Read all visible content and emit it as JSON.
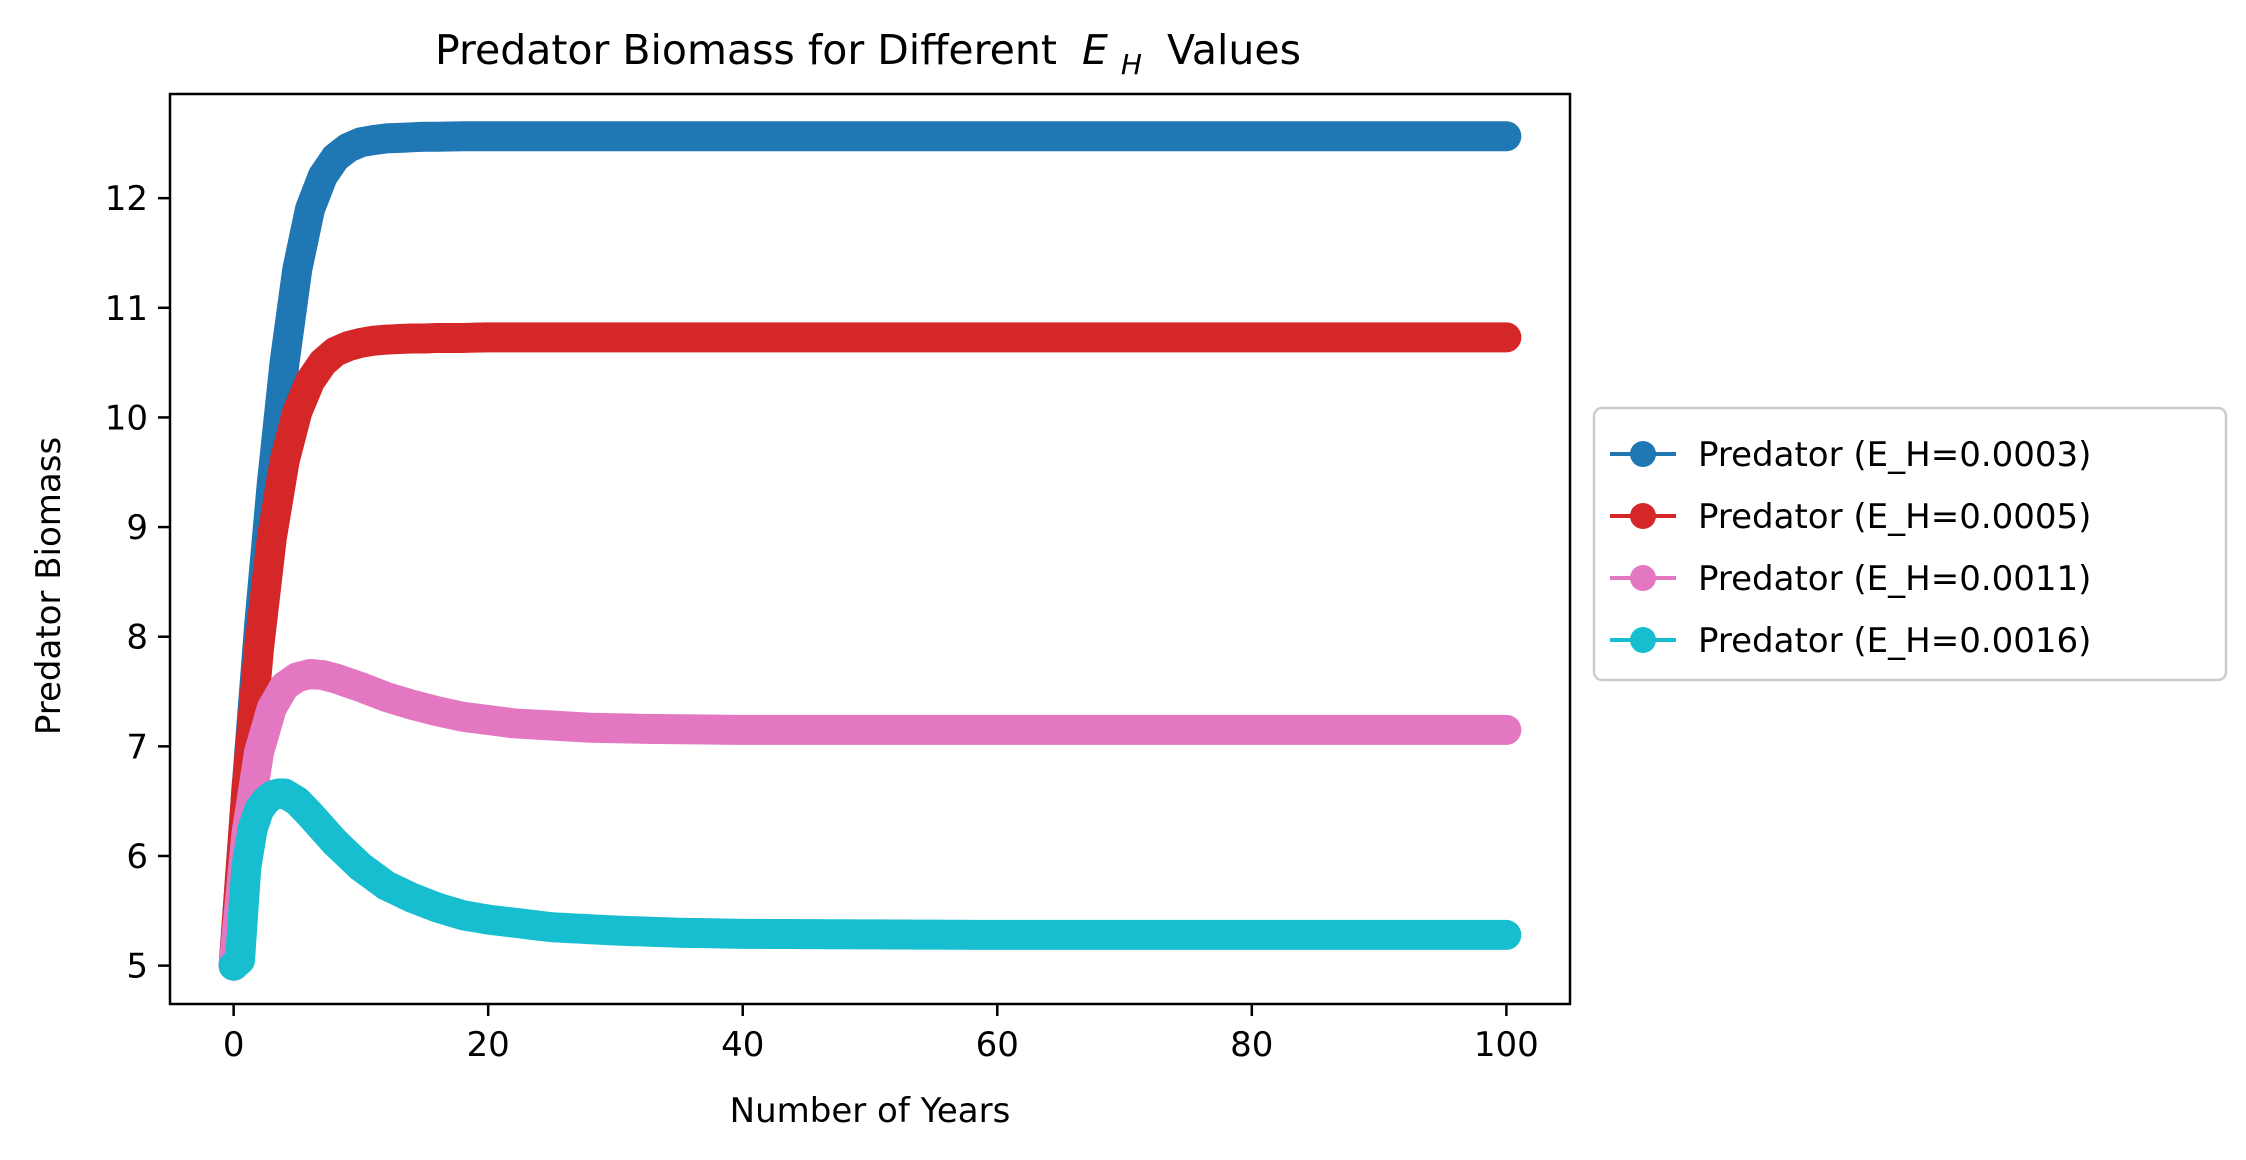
{
  "chart_data": {
    "type": "line",
    "title": "Predator Biomass for Different",
    "title_math": {
      "base": "E",
      "sub": "H"
    },
    "title_suffix": "Values",
    "xlabel": "Number of Years",
    "ylabel": "Predator Biomass",
    "xlim": [
      -5,
      105
    ],
    "ylim": [
      4.65,
      12.95
    ],
    "x_ticks": [
      0,
      20,
      40,
      60,
      80,
      100
    ],
    "x_tick_labels": [
      "0",
      "20",
      "40",
      "60",
      "80",
      "100"
    ],
    "y_ticks": [
      5,
      6,
      7,
      8,
      9,
      10,
      11,
      12
    ],
    "y_tick_labels": [
      "5",
      "6",
      "7",
      "8",
      "9",
      "10",
      "11",
      "12"
    ],
    "grid": false,
    "legend_position": "outside-right",
    "x_start": 0,
    "x_end": 100,
    "x_step": 0.5,
    "series": [
      {
        "name": "Predator (E_H=0.0003)",
        "color": "#1f77b4",
        "x": [
          0,
          1,
          2,
          3,
          4,
          5,
          6,
          7,
          8,
          9,
          10,
          11,
          12,
          13,
          14,
          15,
          16,
          18,
          20,
          25,
          30,
          40,
          60,
          80,
          100
        ],
        "y": [
          5.0,
          6.6,
          8.1,
          9.4,
          10.5,
          11.35,
          11.9,
          12.2,
          12.37,
          12.46,
          12.51,
          12.53,
          12.545,
          12.55,
          12.555,
          12.56,
          12.56,
          12.565,
          12.565,
          12.565,
          12.565,
          12.565,
          12.565,
          12.565,
          12.565
        ]
      },
      {
        "name": "Predator (E_H=0.0005)",
        "color": "#d62728",
        "x": [
          0,
          1,
          2,
          3,
          4,
          5,
          6,
          7,
          8,
          9,
          10,
          11,
          12,
          13,
          14,
          15,
          16,
          18,
          20,
          25,
          30,
          40,
          60,
          80,
          100
        ],
        "y": [
          5.0,
          6.6,
          7.9,
          8.9,
          9.6,
          10.05,
          10.33,
          10.5,
          10.6,
          10.65,
          10.68,
          10.7,
          10.71,
          10.715,
          10.72,
          10.72,
          10.725,
          10.725,
          10.73,
          10.73,
          10.73,
          10.73,
          10.73,
          10.73,
          10.73
        ]
      },
      {
        "name": "Predator (E_H=0.0011)",
        "color": "#e377c2",
        "x": [
          0,
          1,
          2,
          3,
          4,
          5,
          6,
          7,
          8,
          9,
          10,
          12,
          14,
          16,
          18,
          20,
          22,
          25,
          28,
          32,
          36,
          40,
          50,
          60,
          80,
          100
        ],
        "y": [
          5.0,
          6.2,
          6.95,
          7.35,
          7.55,
          7.63,
          7.66,
          7.65,
          7.62,
          7.58,
          7.54,
          7.45,
          7.38,
          7.32,
          7.27,
          7.24,
          7.21,
          7.19,
          7.17,
          7.16,
          7.155,
          7.15,
          7.15,
          7.15,
          7.15,
          7.15
        ]
      },
      {
        "name": "Predator (E_H=0.0016)",
        "color": "#17becf",
        "x": [
          0,
          0.5,
          1,
          1.5,
          2,
          2.5,
          3,
          3.5,
          4,
          5,
          6,
          7,
          8,
          10,
          12,
          14,
          16,
          18,
          20,
          25,
          30,
          35,
          40,
          50,
          60,
          80,
          100
        ],
        "y": [
          5.0,
          5.05,
          5.9,
          6.25,
          6.42,
          6.5,
          6.55,
          6.57,
          6.57,
          6.5,
          6.38,
          6.25,
          6.12,
          5.9,
          5.73,
          5.62,
          5.53,
          5.46,
          5.42,
          5.35,
          5.32,
          5.3,
          5.29,
          5.285,
          5.28,
          5.28,
          5.28
        ]
      }
    ]
  }
}
